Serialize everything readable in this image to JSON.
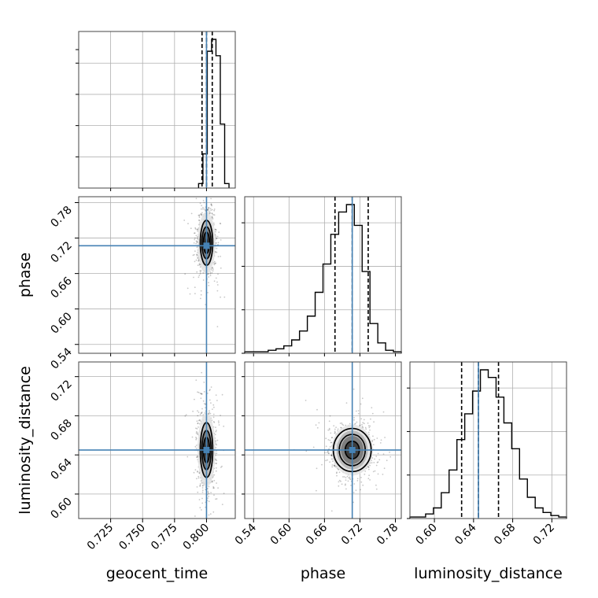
{
  "chart_data": {
    "type": "corner",
    "parameters": [
      "geocent_time",
      "phase",
      "luminosity_distance"
    ],
    "truths": {
      "geocent_time": 0.8,
      "phase": 0.707,
      "luminosity_distance": 0.645
    },
    "quantiles": {
      "geocent_time": [
        0.7965,
        0.8,
        0.8045
      ],
      "phase": [
        0.6778,
        0.707,
        0.734
      ],
      "luminosity_distance": [
        0.6278,
        0.645,
        0.6655
      ]
    },
    "ranges": {
      "geocent_time": [
        0.7,
        0.8225
      ],
      "phase": [
        0.525,
        0.79
      ],
      "luminosity_distance": [
        0.575,
        0.735
      ]
    },
    "ticks": {
      "geocent_time": [
        "0.725",
        "0.750",
        "0.775",
        "0.800"
      ],
      "phase": [
        "0.54",
        "0.60",
        "0.66",
        "0.72",
        "0.78"
      ],
      "luminosity_distance": [
        "0.60",
        "0.64",
        "0.68",
        "0.72"
      ]
    },
    "histograms": {
      "geocent_time": {
        "start": 0.7938,
        "bin_width": 0.0034,
        "counts": [
          3,
          23,
          92,
          100,
          89,
          43,
          3
        ]
      },
      "phase": {
        "start": 0.525,
        "bin_width": 0.01325,
        "counts": [
          1,
          1,
          1,
          2,
          3,
          5,
          9,
          15,
          25,
          41,
          60,
          80,
          95,
          100,
          86,
          55,
          20,
          7,
          2,
          1
        ]
      },
      "luminosity_distance": {
        "start": 0.575,
        "bin_width": 0.008,
        "counts": [
          1,
          1,
          3,
          7,
          17,
          32,
          52,
          69,
          84,
          98,
          93,
          80,
          63,
          46,
          26,
          14,
          7,
          4,
          2,
          1
        ]
      }
    },
    "pair_2d": [
      {
        "x": "geocent_time",
        "y": "phase",
        "center": [
          0.8,
          0.712
        ],
        "levels_sd": [
          [
            0.0024,
            0.018
          ],
          [
            0.0036,
            0.027
          ],
          [
            0.0049,
            0.038
          ]
        ]
      },
      {
        "x": "geocent_time",
        "y": "luminosity_distance",
        "center": [
          0.8,
          0.645
        ],
        "levels_sd": [
          [
            0.0024,
            0.013
          ],
          [
            0.0036,
            0.02
          ],
          [
            0.0049,
            0.028
          ]
        ]
      },
      {
        "x": "phase",
        "y": "luminosity_distance",
        "center": [
          0.707,
          0.645
        ],
        "levels_sd": [
          [
            0.012,
            0.009
          ],
          [
            0.022,
            0.016
          ],
          [
            0.032,
            0.022
          ]
        ]
      }
    ],
    "grid": true,
    "truth_color": "#4682b4",
    "line_color": "#000000"
  }
}
